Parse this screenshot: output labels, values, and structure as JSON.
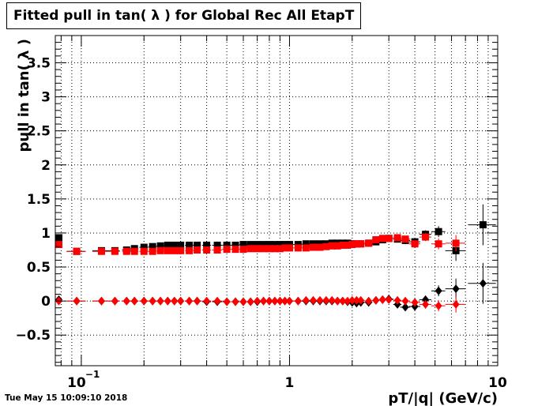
{
  "title": "Fitted pull in tan( λ ) for Global Rec All EtapT",
  "timestamp": "Tue May 15 10:09:10 2018",
  "colors": {
    "black_series": "#000000",
    "red_series": "#ff0000",
    "grid": "#000000"
  },
  "chart_data": {
    "type": "scatter",
    "title": "Fitted pull in tan( λ ) for Global Rec All EtapT",
    "xlabel": "pT/|q| (GeV/c)",
    "ylabel": "pull in tan( λ )",
    "xscale": "log",
    "xlim": [
      0.075,
      10
    ],
    "ylim": [
      -0.95,
      3.9
    ],
    "grid": true,
    "legend": "none",
    "x_ticks": [
      {
        "value": 0.1,
        "label": "10",
        "sup": "−1"
      },
      {
        "value": 1,
        "label": "1",
        "sup": ""
      },
      {
        "value": 10,
        "label": "10",
        "sup": ""
      }
    ],
    "y_ticks": [
      {
        "value": -0.5,
        "label": "−0.5"
      },
      {
        "value": 0,
        "label": "0"
      },
      {
        "value": 0.5,
        "label": "0.5"
      },
      {
        "value": 1,
        "label": "1"
      },
      {
        "value": 1.5,
        "label": "1.5"
      },
      {
        "value": 2,
        "label": "2"
      },
      {
        "value": 2.5,
        "label": "2.5"
      },
      {
        "value": 3,
        "label": "3"
      },
      {
        "value": 3.5,
        "label": "3.5"
      }
    ],
    "series": [
      {
        "marker": "square",
        "color": "#000000",
        "x": [
          0.078,
          0.095,
          0.125,
          0.145,
          0.165,
          0.18,
          0.2,
          0.22,
          0.24,
          0.26,
          0.28,
          0.3,
          0.33,
          0.36,
          0.4,
          0.45,
          0.5,
          0.55,
          0.6,
          0.65,
          0.7,
          0.75,
          0.8,
          0.85,
          0.9,
          0.95,
          1.0,
          1.1,
          1.2,
          1.3,
          1.4,
          1.5,
          1.6,
          1.7,
          1.8,
          1.9,
          2.0,
          2.1,
          2.2,
          2.4,
          2.6,
          2.8,
          3.0,
          3.3,
          3.6,
          4.0,
          4.5,
          5.2,
          6.3,
          8.5
        ],
        "y": [
          0.93,
          0.73,
          0.74,
          0.74,
          0.75,
          0.77,
          0.79,
          0.8,
          0.81,
          0.82,
          0.82,
          0.82,
          0.82,
          0.82,
          0.82,
          0.82,
          0.82,
          0.82,
          0.83,
          0.83,
          0.83,
          0.83,
          0.83,
          0.83,
          0.83,
          0.83,
          0.83,
          0.83,
          0.84,
          0.84,
          0.84,
          0.84,
          0.85,
          0.85,
          0.85,
          0.85,
          0.84,
          0.84,
          0.84,
          0.85,
          0.87,
          0.9,
          0.92,
          0.91,
          0.89,
          0.87,
          0.98,
          1.02,
          0.74,
          1.12
        ],
        "xerr": [
          0.003,
          0.01,
          0.012,
          0.008,
          0.008,
          0.008,
          0.01,
          0.01,
          0.01,
          0.01,
          0.01,
          0.01,
          0.015,
          0.015,
          0.02,
          0.025,
          0.025,
          0.025,
          0.025,
          0.025,
          0.025,
          0.025,
          0.025,
          0.025,
          0.025,
          0.025,
          0.05,
          0.05,
          0.05,
          0.05,
          0.05,
          0.05,
          0.05,
          0.05,
          0.05,
          0.05,
          0.05,
          0.05,
          0.1,
          0.1,
          0.1,
          0.1,
          0.15,
          0.15,
          0.2,
          0.25,
          0.3,
          0.4,
          0.7,
          1.3
        ],
        "yerr": [
          0.03,
          0.02,
          0.02,
          0.02,
          0.01,
          0.01,
          0.01,
          0.01,
          0.01,
          0.01,
          0.01,
          0.01,
          0.01,
          0.01,
          0.01,
          0.01,
          0.01,
          0.01,
          0.01,
          0.01,
          0.01,
          0.01,
          0.01,
          0.01,
          0.01,
          0.01,
          0.01,
          0.01,
          0.01,
          0.01,
          0.01,
          0.01,
          0.01,
          0.01,
          0.01,
          0.01,
          0.01,
          0.01,
          0.01,
          0.02,
          0.02,
          0.03,
          0.03,
          0.04,
          0.05,
          0.05,
          0.06,
          0.08,
          0.15,
          0.3
        ]
      },
      {
        "marker": "square",
        "color": "#ff0000",
        "x": [
          0.078,
          0.095,
          0.125,
          0.145,
          0.165,
          0.18,
          0.2,
          0.22,
          0.24,
          0.26,
          0.28,
          0.3,
          0.33,
          0.36,
          0.4,
          0.45,
          0.5,
          0.55,
          0.6,
          0.65,
          0.7,
          0.75,
          0.8,
          0.85,
          0.9,
          0.95,
          1.0,
          1.1,
          1.2,
          1.3,
          1.4,
          1.5,
          1.6,
          1.7,
          1.8,
          1.9,
          2.0,
          2.1,
          2.2,
          2.4,
          2.6,
          2.8,
          3.0,
          3.3,
          3.6,
          4.0,
          4.5,
          5.2,
          6.3
        ],
        "y": [
          0.83,
          0.73,
          0.73,
          0.73,
          0.73,
          0.73,
          0.73,
          0.73,
          0.74,
          0.74,
          0.74,
          0.74,
          0.74,
          0.75,
          0.75,
          0.75,
          0.76,
          0.76,
          0.76,
          0.77,
          0.77,
          0.77,
          0.77,
          0.77,
          0.77,
          0.78,
          0.78,
          0.78,
          0.78,
          0.79,
          0.79,
          0.8,
          0.81,
          0.81,
          0.82,
          0.82,
          0.83,
          0.84,
          0.84,
          0.85,
          0.9,
          0.92,
          0.92,
          0.93,
          0.91,
          0.84,
          0.94,
          0.84,
          0.85
        ],
        "xerr": [
          0.003,
          0.01,
          0.012,
          0.008,
          0.008,
          0.008,
          0.01,
          0.01,
          0.01,
          0.01,
          0.01,
          0.01,
          0.015,
          0.015,
          0.02,
          0.025,
          0.025,
          0.025,
          0.025,
          0.025,
          0.025,
          0.025,
          0.025,
          0.025,
          0.025,
          0.025,
          0.05,
          0.05,
          0.05,
          0.05,
          0.05,
          0.05,
          0.05,
          0.05,
          0.05,
          0.05,
          0.05,
          0.05,
          0.1,
          0.1,
          0.1,
          0.1,
          0.15,
          0.15,
          0.2,
          0.25,
          0.3,
          0.4,
          0.7
        ],
        "yerr": [
          0.03,
          0.02,
          0.02,
          0.02,
          0.01,
          0.01,
          0.01,
          0.01,
          0.01,
          0.01,
          0.01,
          0.01,
          0.01,
          0.01,
          0.01,
          0.01,
          0.01,
          0.01,
          0.01,
          0.01,
          0.01,
          0.01,
          0.01,
          0.01,
          0.01,
          0.01,
          0.01,
          0.01,
          0.01,
          0.01,
          0.01,
          0.01,
          0.01,
          0.01,
          0.01,
          0.01,
          0.01,
          0.01,
          0.01,
          0.02,
          0.02,
          0.03,
          0.03,
          0.04,
          0.05,
          0.05,
          0.06,
          0.08,
          0.12
        ]
      },
      {
        "marker": "diamond",
        "color": "#000000",
        "x": [
          0.078,
          0.095,
          0.125,
          0.145,
          0.165,
          0.18,
          0.2,
          0.22,
          0.24,
          0.26,
          0.28,
          0.3,
          0.33,
          0.36,
          0.4,
          0.45,
          0.5,
          0.55,
          0.6,
          0.65,
          0.7,
          0.75,
          0.8,
          0.85,
          0.9,
          0.95,
          1.0,
          1.1,
          1.2,
          1.3,
          1.4,
          1.5,
          1.6,
          1.7,
          1.8,
          1.9,
          2.0,
          2.1,
          2.2,
          2.4,
          2.6,
          2.8,
          3.0,
          3.3,
          3.6,
          4.0,
          4.5,
          5.2,
          6.3,
          8.5
        ],
        "y": [
          0.02,
          0.0,
          0.0,
          0.0,
          0.0,
          0.0,
          0.0,
          0.0,
          0.0,
          0.0,
          0.0,
          0.0,
          0.0,
          0.0,
          -0.01,
          -0.01,
          -0.01,
          -0.01,
          -0.01,
          -0.01,
          -0.01,
          0.0,
          0.0,
          0.0,
          0.0,
          0.0,
          0.0,
          0.0,
          0.0,
          0.0,
          0.0,
          0.0,
          0.0,
          0.0,
          0.0,
          -0.01,
          -0.02,
          -0.03,
          -0.02,
          -0.02,
          0.01,
          0.02,
          0.03,
          -0.05,
          -0.09,
          -0.08,
          0.02,
          0.15,
          0.18,
          0.26
        ],
        "xerr": [
          0.003,
          0.01,
          0.012,
          0.008,
          0.008,
          0.008,
          0.01,
          0.01,
          0.01,
          0.01,
          0.01,
          0.01,
          0.015,
          0.015,
          0.02,
          0.025,
          0.025,
          0.025,
          0.025,
          0.025,
          0.025,
          0.025,
          0.025,
          0.025,
          0.025,
          0.025,
          0.05,
          0.05,
          0.05,
          0.05,
          0.05,
          0.05,
          0.05,
          0.05,
          0.05,
          0.05,
          0.05,
          0.05,
          0.1,
          0.1,
          0.1,
          0.1,
          0.15,
          0.15,
          0.2,
          0.25,
          0.3,
          0.4,
          0.7,
          1.3
        ],
        "yerr": [
          0.03,
          0.02,
          0.02,
          0.02,
          0.01,
          0.01,
          0.01,
          0.01,
          0.01,
          0.01,
          0.01,
          0.01,
          0.01,
          0.01,
          0.01,
          0.01,
          0.01,
          0.01,
          0.01,
          0.01,
          0.01,
          0.01,
          0.01,
          0.01,
          0.01,
          0.01,
          0.01,
          0.01,
          0.01,
          0.01,
          0.01,
          0.01,
          0.01,
          0.01,
          0.01,
          0.01,
          0.01,
          0.01,
          0.01,
          0.02,
          0.02,
          0.03,
          0.03,
          0.04,
          0.05,
          0.05,
          0.06,
          0.08,
          0.15,
          0.3
        ]
      },
      {
        "marker": "diamond",
        "color": "#ff0000",
        "x": [
          0.078,
          0.095,
          0.125,
          0.145,
          0.165,
          0.18,
          0.2,
          0.22,
          0.24,
          0.26,
          0.28,
          0.3,
          0.33,
          0.36,
          0.4,
          0.45,
          0.5,
          0.55,
          0.6,
          0.65,
          0.7,
          0.75,
          0.8,
          0.85,
          0.9,
          0.95,
          1.0,
          1.1,
          1.2,
          1.3,
          1.4,
          1.5,
          1.6,
          1.7,
          1.8,
          1.9,
          2.0,
          2.1,
          2.2,
          2.4,
          2.6,
          2.8,
          3.0,
          3.3,
          3.6,
          4.0,
          4.5,
          5.2,
          6.3
        ],
        "y": [
          0.0,
          0.0,
          0.0,
          0.0,
          0.0,
          0.0,
          0.0,
          0.0,
          0.0,
          0.0,
          0.0,
          0.0,
          0.0,
          0.0,
          0.0,
          0.0,
          -0.01,
          -0.01,
          -0.01,
          -0.01,
          0.0,
          0.0,
          0.0,
          0.0,
          0.0,
          0.0,
          0.0,
          0.0,
          0.01,
          0.01,
          0.01,
          0.01,
          0.01,
          0.0,
          0.0,
          0.0,
          0.01,
          0.01,
          0.01,
          0.0,
          0.01,
          0.02,
          0.02,
          0.01,
          0.0,
          -0.02,
          -0.05,
          -0.07,
          -0.05
        ],
        "xerr": [
          0.003,
          0.01,
          0.012,
          0.008,
          0.008,
          0.008,
          0.01,
          0.01,
          0.01,
          0.01,
          0.01,
          0.01,
          0.015,
          0.015,
          0.02,
          0.025,
          0.025,
          0.025,
          0.025,
          0.025,
          0.025,
          0.025,
          0.025,
          0.025,
          0.025,
          0.025,
          0.05,
          0.05,
          0.05,
          0.05,
          0.05,
          0.05,
          0.05,
          0.05,
          0.05,
          0.05,
          0.05,
          0.05,
          0.1,
          0.1,
          0.1,
          0.1,
          0.15,
          0.15,
          0.2,
          0.25,
          0.3,
          0.4,
          0.7
        ],
        "yerr": [
          0.03,
          0.02,
          0.02,
          0.02,
          0.01,
          0.01,
          0.01,
          0.01,
          0.01,
          0.01,
          0.01,
          0.01,
          0.01,
          0.01,
          0.01,
          0.01,
          0.01,
          0.01,
          0.01,
          0.01,
          0.01,
          0.01,
          0.01,
          0.01,
          0.01,
          0.01,
          0.01,
          0.01,
          0.01,
          0.01,
          0.01,
          0.01,
          0.01,
          0.01,
          0.01,
          0.01,
          0.01,
          0.01,
          0.01,
          0.02,
          0.02,
          0.03,
          0.03,
          0.04,
          0.05,
          0.05,
          0.06,
          0.08,
          0.12
        ]
      }
    ]
  }
}
